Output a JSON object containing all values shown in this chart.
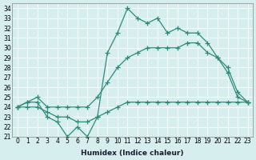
{
  "xlabel": "Humidex (Indice chaleur)",
  "ylabel": "",
  "background_color": "#d6eeee",
  "line_color": "#2e8b7a",
  "xlim": [
    -0.5,
    23.5
  ],
  "ylim": [
    21,
    34.5
  ],
  "xtick_labels": [
    "0",
    "1",
    "2",
    "3",
    "4",
    "5",
    "6",
    "7",
    "8",
    "9",
    "10",
    "11",
    "12",
    "13",
    "14",
    "15",
    "16",
    "17",
    "18",
    "19",
    "20",
    "21",
    "22",
    "23"
  ],
  "ytick_values": [
    21,
    22,
    23,
    24,
    25,
    26,
    27,
    28,
    29,
    30,
    31,
    32,
    33,
    34
  ],
  "series": [
    {
      "x": [
        0,
        1,
        2,
        3,
        4,
        5,
        6,
        7,
        8,
        9,
        10,
        11,
        12,
        13,
        14,
        15,
        16,
        17,
        18,
        19,
        20,
        21,
        22,
        23
      ],
      "y": [
        24,
        24.5,
        24.5,
        23,
        22.5,
        21,
        22,
        21,
        23,
        29.5,
        31.5,
        34,
        33,
        32.5,
        33,
        31.5,
        32,
        31.5,
        31.5,
        30.5,
        29,
        27.5,
        25,
        24.5
      ]
    },
    {
      "x": [
        0,
        1,
        2,
        3,
        4,
        5,
        6,
        7,
        8,
        9,
        10,
        11,
        12,
        13,
        14,
        15,
        16,
        17,
        18,
        19,
        20,
        21,
        22,
        23
      ],
      "y": [
        24,
        24,
        24,
        23.5,
        23,
        23,
        22.5,
        22.5,
        23,
        23.5,
        24,
        24.5,
        24.5,
        24.5,
        24.5,
        24.5,
        24.5,
        24.5,
        24.5,
        24.5,
        24.5,
        24.5,
        24.5,
        24.5
      ]
    },
    {
      "x": [
        0,
        1,
        2,
        3,
        4,
        5,
        6,
        7,
        8,
        9,
        10,
        11,
        12,
        13,
        14,
        15,
        16,
        17,
        18,
        19,
        20,
        21,
        22,
        23
      ],
      "y": [
        24,
        24.5,
        25,
        24,
        24,
        24,
        24,
        24,
        25,
        26.5,
        28,
        29,
        29.5,
        30,
        30,
        30,
        30,
        30.5,
        30.5,
        29.5,
        29,
        28,
        25.5,
        24.5
      ]
    }
  ]
}
